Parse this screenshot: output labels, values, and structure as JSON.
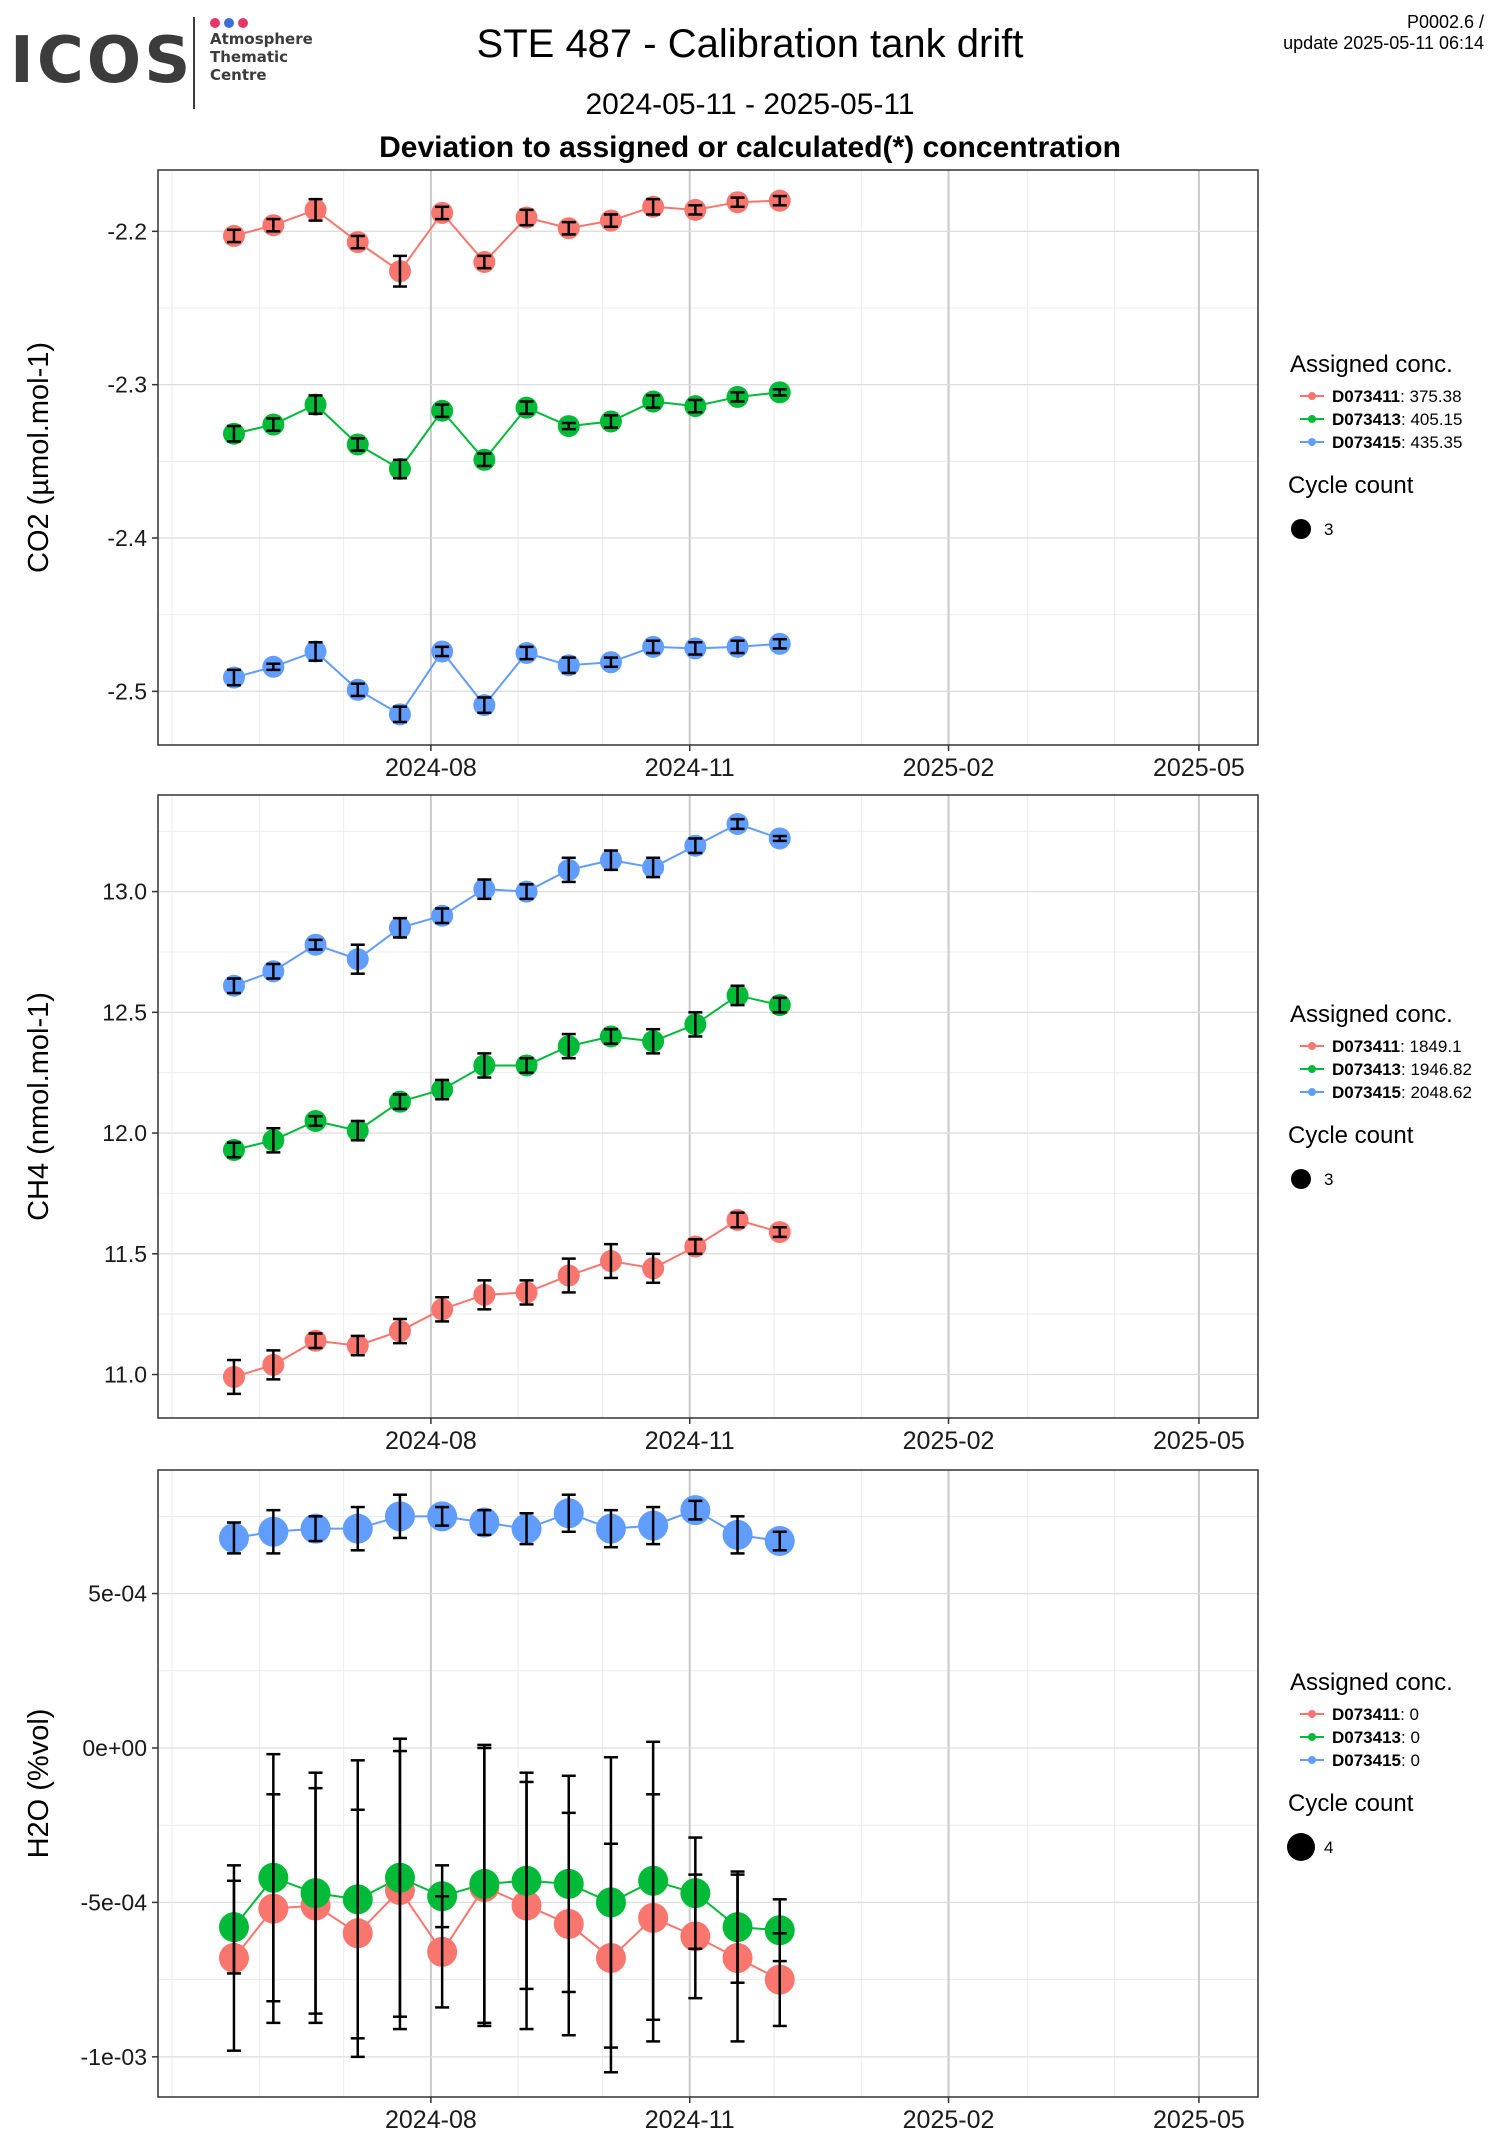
{
  "header": {
    "logo_text": "ICOS",
    "logo_subtitle": [
      "Atmosphere",
      "Thematic",
      "Centre"
    ],
    "logo_dot_colors": [
      "#e8356b",
      "#3a6fd6",
      "#e8356b"
    ],
    "title": "STE 487 - Calibration tank drift",
    "date_range": "2024-05-11 - 2025-05-11",
    "subtitle": "Deviation to assigned or calculated(*) concentration",
    "version": "P0002.6 /",
    "update": "update  2025-05-11 06:14"
  },
  "colors": {
    "D073411": "#F8766D",
    "D073413": "#00BA38",
    "D073415": "#619CFF"
  },
  "chart_data": [
    {
      "type": "scatter",
      "ylabel": "CO2 (µmol.mol-1)",
      "xlabel": "",
      "x_ticks": [
        "2024-08",
        "2024-11",
        "2025-02",
        "2025-05"
      ],
      "ylim": [
        -2.535,
        -2.16
      ],
      "y_ticks": [
        -2.2,
        -2.3,
        -2.4,
        -2.5
      ],
      "y_tick_labels": [
        "-2.2",
        "-2.3",
        "-2.4",
        "-2.5"
      ],
      "x": [
        "2024-05-23",
        "2024-06-06",
        "2024-06-21",
        "2024-07-06",
        "2024-07-21",
        "2024-08-05",
        "2024-08-20",
        "2024-09-04",
        "2024-09-19",
        "2024-10-04",
        "2024-10-19",
        "2024-11-03",
        "2024-11-18",
        "2024-12-03"
      ],
      "legend_title": "Assigned conc.",
      "size_legend_title": "Cycle count",
      "size_legend_value": "3",
      "series": [
        {
          "name": "D073411",
          "assigned": "375.38",
          "values": [
            -2.203,
            -2.196,
            -2.186,
            -2.207,
            -2.226,
            -2.188,
            -2.22,
            -2.191,
            -2.198,
            -2.193,
            -2.184,
            -2.186,
            -2.181,
            -2.18
          ],
          "err": [
            0.004,
            0.004,
            0.007,
            0.004,
            0.01,
            0.004,
            0.004,
            0.005,
            0.004,
            0.004,
            0.005,
            0.003,
            0.003,
            0.003
          ]
        },
        {
          "name": "D073413",
          "assigned": "405.15",
          "values": [
            -2.332,
            -2.326,
            -2.313,
            -2.339,
            -2.355,
            -2.317,
            -2.349,
            -2.315,
            -2.327,
            -2.324,
            -2.311,
            -2.314,
            -2.308,
            -2.305
          ],
          "err": [
            0.005,
            0.004,
            0.006,
            0.004,
            0.006,
            0.004,
            0.004,
            0.004,
            0.002,
            0.004,
            0.004,
            0.004,
            0.003,
            0.002
          ]
        },
        {
          "name": "D073415",
          "assigned": "435.35",
          "values": [
            -2.491,
            -2.484,
            -2.474,
            -2.499,
            -2.515,
            -2.474,
            -2.509,
            -2.475,
            -2.483,
            -2.481,
            -2.471,
            -2.472,
            -2.471,
            -2.469
          ],
          "err": [
            0.005,
            0.002,
            0.006,
            0.004,
            0.005,
            0.003,
            0.005,
            0.004,
            0.005,
            0.003,
            0.004,
            0.004,
            0.004,
            0.003
          ]
        }
      ]
    },
    {
      "type": "scatter",
      "ylabel": "CH4 (nmol.mol-1)",
      "xlabel": "",
      "x_ticks": [
        "2024-08",
        "2024-11",
        "2025-02",
        "2025-05"
      ],
      "ylim": [
        10.82,
        13.4
      ],
      "y_ticks": [
        11.0,
        11.5,
        12.0,
        12.5,
        13.0
      ],
      "y_tick_labels": [
        "11.0",
        "11.5",
        "12.0",
        "12.5",
        "13.0"
      ],
      "x": [
        "2024-05-23",
        "2024-06-06",
        "2024-06-21",
        "2024-07-06",
        "2024-07-21",
        "2024-08-05",
        "2024-08-20",
        "2024-09-04",
        "2024-09-19",
        "2024-10-04",
        "2024-10-19",
        "2024-11-03",
        "2024-11-18",
        "2024-12-03"
      ],
      "legend_title": "Assigned conc.",
      "size_legend_title": "Cycle count",
      "size_legend_value": "3",
      "series": [
        {
          "name": "D073411",
          "assigned": "1849.1",
          "values": [
            10.99,
            11.04,
            11.14,
            11.12,
            11.18,
            11.27,
            11.33,
            11.34,
            11.41,
            11.47,
            11.44,
            11.53,
            11.64,
            11.59
          ],
          "err": [
            0.07,
            0.06,
            0.03,
            0.04,
            0.05,
            0.05,
            0.06,
            0.05,
            0.07,
            0.07,
            0.06,
            0.03,
            0.03,
            0.02
          ]
        },
        {
          "name": "D073413",
          "assigned": "1946.82",
          "values": [
            11.93,
            11.97,
            12.05,
            12.01,
            12.13,
            12.18,
            12.28,
            12.28,
            12.36,
            12.4,
            12.38,
            12.45,
            12.57,
            12.53
          ],
          "err": [
            0.03,
            0.05,
            0.02,
            0.04,
            0.03,
            0.04,
            0.05,
            0.03,
            0.05,
            0.03,
            0.05,
            0.05,
            0.04,
            0.03
          ]
        },
        {
          "name": "D073415",
          "assigned": "2048.62",
          "values": [
            12.61,
            12.67,
            12.78,
            12.72,
            12.85,
            12.9,
            13.01,
            13.0,
            13.09,
            13.13,
            13.1,
            13.19,
            13.28,
            13.22
          ],
          "err": [
            0.03,
            0.03,
            0.02,
            0.06,
            0.04,
            0.03,
            0.04,
            0.03,
            0.05,
            0.04,
            0.04,
            0.03,
            0.02,
            0.01
          ]
        }
      ]
    },
    {
      "type": "scatter",
      "ylabel": "H2O (%vol)",
      "xlabel": "",
      "x_ticks": [
        "2024-08",
        "2024-11",
        "2025-02",
        "2025-05"
      ],
      "ylim": [
        -0.00113,
        0.0009
      ],
      "y_ticks": [
        0.0005,
        0,
        -0.0005,
        -0.001
      ],
      "y_tick_labels": [
        "5e-04",
        "0e+00",
        "-5e-04",
        "-1e-03"
      ],
      "x": [
        "2024-05-23",
        "2024-06-06",
        "2024-06-21",
        "2024-07-06",
        "2024-07-21",
        "2024-08-05",
        "2024-08-20",
        "2024-09-04",
        "2024-09-19",
        "2024-10-04",
        "2024-10-19",
        "2024-11-03",
        "2024-11-18",
        "2024-12-03"
      ],
      "legend_title": "Assigned conc.",
      "size_legend_title": "Cycle count",
      "size_legend_value": "4",
      "series": [
        {
          "name": "D073411",
          "assigned": "0",
          "values": [
            -0.00068,
            -0.00052,
            -0.00051,
            -0.0006,
            -0.00046,
            -0.00066,
            -0.00045,
            -0.00051,
            -0.00057,
            -0.00068,
            -0.00055,
            -0.00061,
            -0.00068,
            -0.00075
          ],
          "err": [
            0.0003,
            0.00037,
            0.00038,
            0.0004,
            0.00045,
            0.00018,
            0.00045,
            0.0004,
            0.00036,
            0.00037,
            0.0004,
            0.0002,
            0.00027,
            0.00015
          ]
        },
        {
          "name": "D073413",
          "assigned": "0",
          "values": [
            -0.00058,
            -0.00042,
            -0.00047,
            -0.00049,
            -0.00042,
            -0.00048,
            -0.00044,
            -0.00043,
            -0.00044,
            -0.0005,
            -0.00043,
            -0.00047,
            -0.00058,
            -0.00059
          ],
          "err": [
            0.00015,
            0.0004,
            0.00039,
            0.00045,
            0.00045,
            0.0001,
            0.00045,
            0.00035,
            0.00035,
            0.00047,
            0.00045,
            0.00018,
            0.00018,
            0.0001
          ]
        },
        {
          "name": "D073415",
          "assigned": "0",
          "values": [
            0.00068,
            0.0007,
            0.00071,
            0.00071,
            0.00075,
            0.00075,
            0.00073,
            0.00071,
            0.00076,
            0.00071,
            0.00072,
            0.00077,
            0.00069,
            0.00067
          ],
          "err": [
            5e-05,
            7e-05,
            4e-05,
            7e-05,
            7e-05,
            3e-05,
            4e-05,
            5e-05,
            6e-05,
            6e-05,
            6e-05,
            3e-05,
            6e-05,
            3e-05
          ]
        }
      ]
    }
  ]
}
